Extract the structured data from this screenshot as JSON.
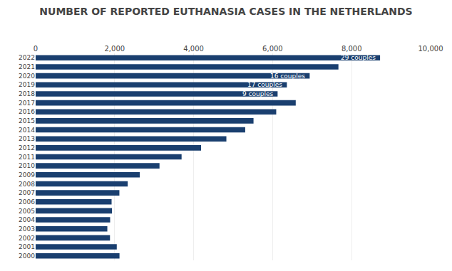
{
  "chart_data": {
    "type": "bar",
    "orientation": "horizontal",
    "title": "NUMBER OF REPORTED EUTHANASIA CASES IN THE NETHERLANDS",
    "categories": [
      "2022",
      "2021",
      "2020",
      "2019",
      "2018",
      "2017",
      "2016",
      "2015",
      "2014",
      "2013",
      "2012",
      "2011",
      "2010",
      "2009",
      "2008",
      "2007",
      "2006",
      "2005",
      "2004",
      "2003",
      "2002",
      "2001",
      "2000"
    ],
    "values": [
      8720,
      7666,
      6938,
      6361,
      6126,
      6585,
      6091,
      5516,
      5306,
      4829,
      4188,
      3695,
      3136,
      2636,
      2331,
      2120,
      1923,
      1933,
      1886,
      1815,
      1882,
      2054,
      2123
    ],
    "color": "#1a3f6f",
    "xlim": [
      0,
      10000
    ],
    "xticks": [
      0,
      {
        "value": 2000,
        "label": "2,000"
      },
      {
        "value": 4000,
        "label": "4,000"
      },
      {
        "value": 6000,
        "label": "6,000"
      },
      {
        "value": 8000,
        "label": "8,000"
      },
      {
        "value": 10000,
        "label": "10,000"
      }
    ],
    "grid": true,
    "annotations": [
      {
        "category": "2022",
        "text": "29 couples"
      },
      {
        "category": "2020",
        "text": "16 couples"
      },
      {
        "category": "2019",
        "text": "17 couples"
      },
      {
        "category": "2018",
        "text": "9 couples"
      }
    ]
  }
}
